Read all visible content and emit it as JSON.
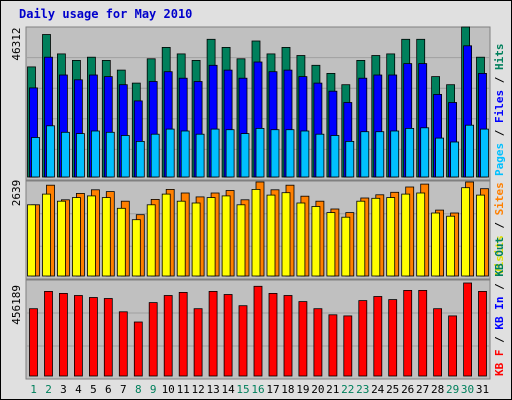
{
  "chart_title": "Daily usage for May 2010",
  "colors": {
    "hits": "#00805c",
    "files": "#0000ff",
    "pages": "#00c0ff",
    "visits": "#ffff00",
    "sites": "#ff8000",
    "kb_in": "#ff0000",
    "kb_out": "#ff0000",
    "day_weekend": "#00805c",
    "day_weekday": "#000000",
    "title": "#0000cc",
    "panel_bg": "#c0c0c0"
  },
  "chart_data": [
    {
      "type": "bar",
      "panel": "top",
      "max_label": "46312",
      "ylim": [
        0,
        46312
      ],
      "categories": [
        "1",
        "2",
        "3",
        "4",
        "5",
        "6",
        "7",
        "8",
        "9",
        "10",
        "11",
        "12",
        "13",
        "14",
        "15",
        "16",
        "17",
        "18",
        "19",
        "20",
        "21",
        "22",
        "23",
        "24",
        "25",
        "26",
        "27",
        "28",
        "29",
        "30",
        "31"
      ],
      "weekend_days": [
        "1",
        "2",
        "8",
        "9",
        "15",
        "16",
        "22",
        "23",
        "29",
        "30"
      ],
      "legend": [
        "Pages",
        "Files",
        "Hits"
      ],
      "series": [
        {
          "name": "Hits",
          "values": [
            34000,
            44000,
            38000,
            36000,
            37000,
            36000,
            33000,
            29000,
            36500,
            40000,
            38000,
            36000,
            42500,
            40000,
            36500,
            42000,
            38000,
            40000,
            37500,
            34500,
            32000,
            28500,
            36000,
            37500,
            38000,
            42500,
            42500,
            31000,
            28500,
            46312,
            37000
          ]
        },
        {
          "name": "Files",
          "values": [
            27500,
            37000,
            31500,
            30000,
            31500,
            31000,
            28500,
            23500,
            29500,
            32500,
            30500,
            29500,
            34500,
            33000,
            30500,
            35500,
            32500,
            33000,
            31000,
            29000,
            26500,
            23000,
            30500,
            31500,
            31500,
            35000,
            35000,
            25500,
            23000,
            40500,
            32000
          ]
        },
        {
          "name": "Pages",
          "values": [
            12200,
            15800,
            13800,
            13400,
            14200,
            13800,
            12800,
            11000,
            13200,
            14800,
            14200,
            13200,
            14800,
            14600,
            13400,
            15000,
            14600,
            14600,
            14200,
            13200,
            12800,
            11000,
            14000,
            14000,
            14200,
            15000,
            15200,
            12000,
            10800,
            16000,
            14800
          ]
        }
      ]
    },
    {
      "type": "bar",
      "panel": "middle",
      "max_label": "2639",
      "ylim": [
        0,
        2639
      ],
      "categories": [
        "1",
        "2",
        "3",
        "4",
        "5",
        "6",
        "7",
        "8",
        "9",
        "10",
        "11",
        "12",
        "13",
        "14",
        "15",
        "16",
        "17",
        "18",
        "19",
        "20",
        "21",
        "22",
        "23",
        "24",
        "25",
        "26",
        "27",
        "28",
        "29",
        "30",
        "31"
      ],
      "legend": [
        "Visits",
        "Sites"
      ],
      "series": [
        {
          "name": "Visits",
          "values": [
            2000,
            2300,
            2100,
            2200,
            2250,
            2200,
            1900,
            1580,
            2000,
            2300,
            2100,
            2050,
            2200,
            2250,
            2000,
            2430,
            2270,
            2340,
            2050,
            1950,
            1780,
            1650,
            2100,
            2180,
            2200,
            2300,
            2330,
            1770,
            1680,
            2480,
            2270
          ]
        },
        {
          "name": "Sites",
          "values": [
            2000,
            2550,
            2140,
            2320,
            2420,
            2370,
            2100,
            1720,
            2150,
            2430,
            2330,
            2220,
            2330,
            2400,
            2140,
            2639,
            2420,
            2550,
            2240,
            2100,
            1880,
            1780,
            2190,
            2280,
            2350,
            2500,
            2580,
            1850,
            1770,
            2639,
            2450
          ]
        }
      ]
    },
    {
      "type": "bar",
      "panel": "bottom",
      "max_label": "456189",
      "ylim": [
        0,
        456189
      ],
      "categories": [
        "1",
        "2",
        "3",
        "4",
        "5",
        "6",
        "7",
        "8",
        "9",
        "10",
        "11",
        "12",
        "13",
        "14",
        "15",
        "16",
        "17",
        "18",
        "19",
        "20",
        "21",
        "22",
        "23",
        "24",
        "25",
        "26",
        "27",
        "28",
        "29",
        "30",
        "31"
      ],
      "legend": [
        "KB F",
        "KB In",
        "KB Out"
      ],
      "series": [
        {
          "name": "KB F",
          "values": [
            330000,
            415000,
            405000,
            395000,
            385000,
            380000,
            315000,
            265000,
            360000,
            395000,
            410000,
            330000,
            415000,
            400000,
            345000,
            440000,
            405000,
            395000,
            365000,
            330000,
            300000,
            295000,
            370000,
            390000,
            375000,
            420000,
            420000,
            330000,
            295000,
            456189,
            415000
          ]
        }
      ]
    }
  ]
}
